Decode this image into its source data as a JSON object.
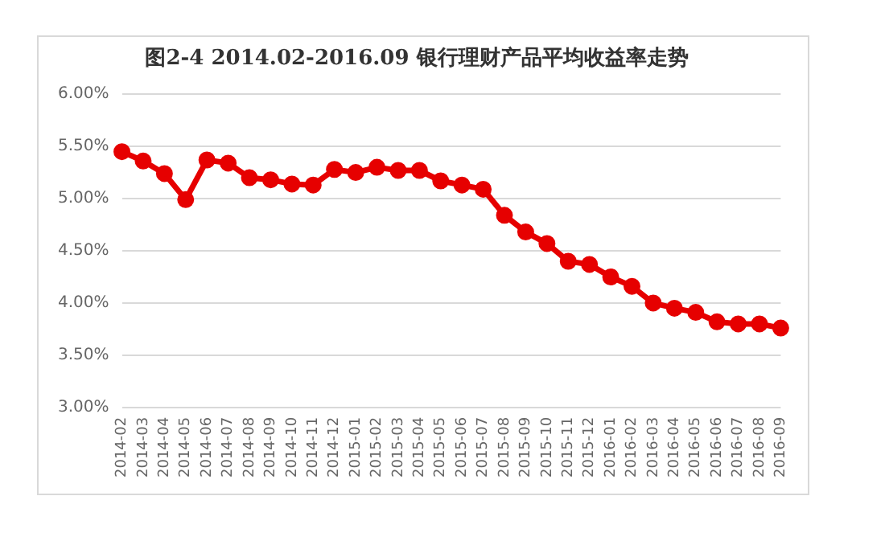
{
  "chart_data": {
    "type": "line",
    "title": "图2-4 2014.02-2016.09 银行理财产品平均收益率走势",
    "categories": [
      "2014-02",
      "2014-03",
      "2014-04",
      "2014-05",
      "2014-06",
      "2014-07",
      "2014-08",
      "2014-09",
      "2014-10",
      "2014-11",
      "2014-12",
      "2015-01",
      "2015-02",
      "2015-03",
      "2015-04",
      "2015-05",
      "2015-06",
      "2015-07",
      "2015-08",
      "2015-09",
      "2015-10",
      "2015-11",
      "2015-12",
      "2016-01",
      "2016-02",
      "2016-03",
      "2016-04",
      "2016-05",
      "2016-06",
      "2016-07",
      "2016-08",
      "2016-09"
    ],
    "series": [
      {
        "color": "#e60000",
        "values": [
          5.45,
          5.36,
          5.24,
          4.99,
          5.37,
          5.34,
          5.2,
          5.18,
          5.14,
          5.13,
          5.28,
          5.25,
          5.3,
          5.27,
          5.27,
          5.17,
          5.13,
          5.09,
          4.84,
          4.68,
          4.57,
          4.4,
          4.37,
          4.25,
          4.16,
          4.0,
          3.95,
          3.91,
          3.82,
          3.8,
          3.8,
          3.76
        ]
      }
    ],
    "ylim": [
      3,
      6
    ],
    "yticks": [
      {
        "value": 3,
        "label": "3.00%"
      },
      {
        "value": 3.5,
        "label": "3.50%"
      },
      {
        "value": 4,
        "label": "4.00%"
      },
      {
        "value": 4.5,
        "label": "4.50%"
      },
      {
        "value": 5,
        "label": "5.00%"
      },
      {
        "value": 5.5,
        "label": "5.50%"
      },
      {
        "value": 6,
        "label": "6.00%"
      }
    ],
    "grid": "y",
    "legend": false,
    "marker": "circle",
    "line_style": "solid"
  }
}
